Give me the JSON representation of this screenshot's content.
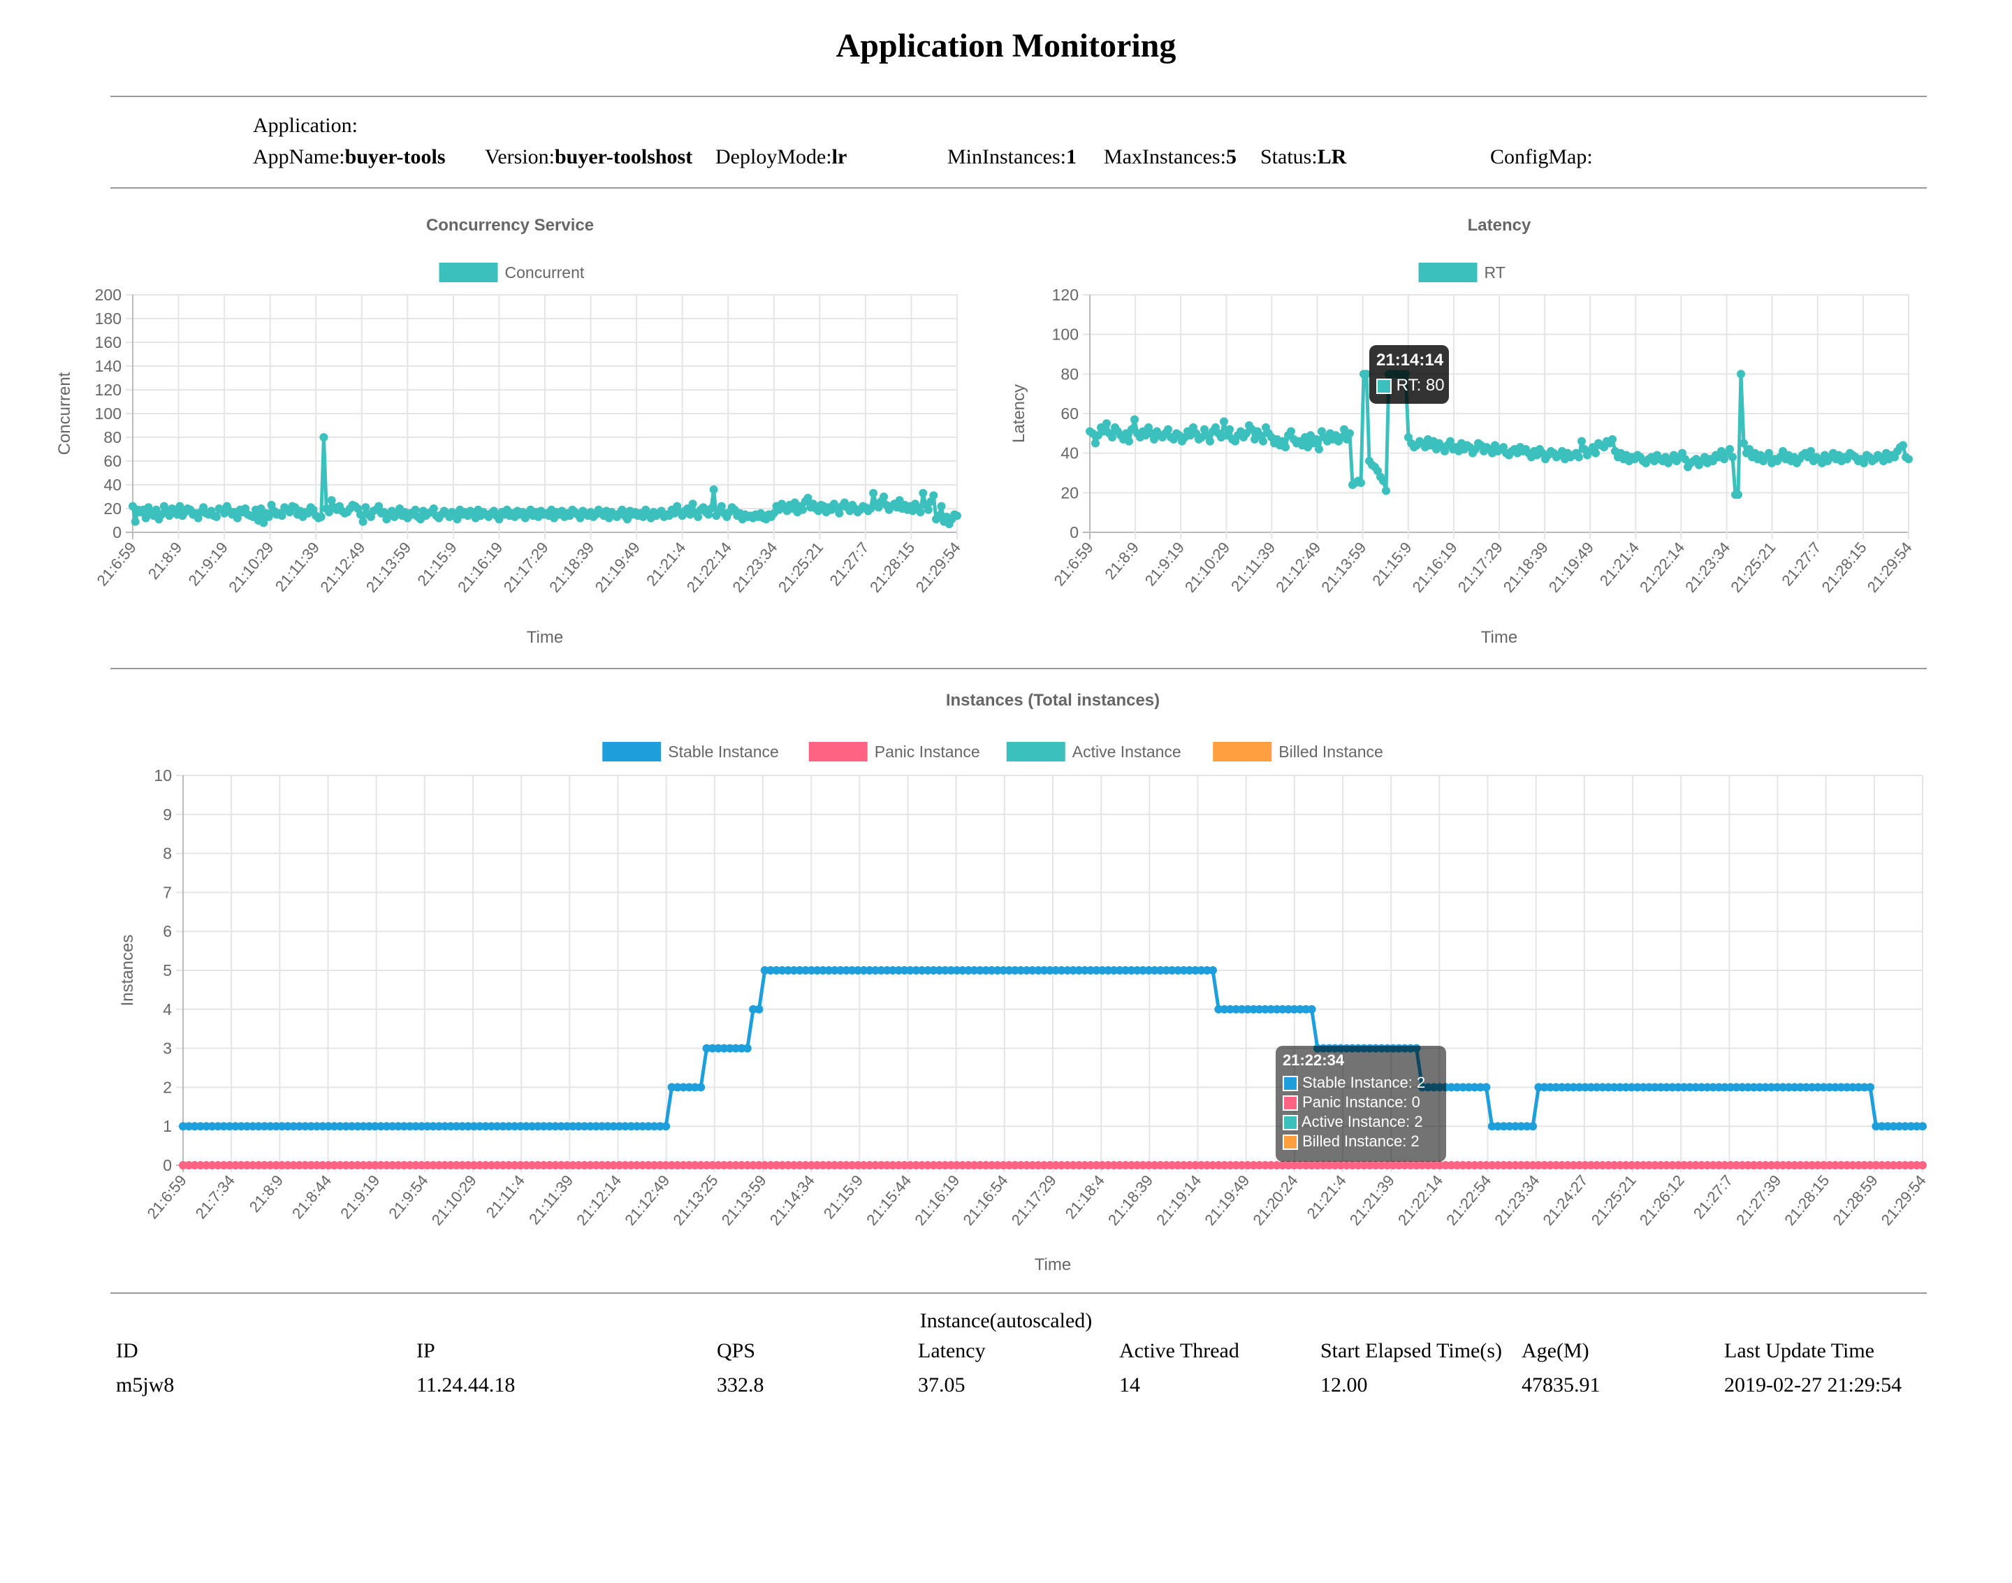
{
  "page": {
    "title": "Application Monitoring"
  },
  "app_info": {
    "application_label": "Application:",
    "appname_label": "AppName:",
    "appname_value": "buyer-tools",
    "version_label": "Version:",
    "version_value": "buyer-toolshost",
    "deploymode_label": "DeployMode:",
    "deploymode_value": "lr",
    "min_label": "MinInstances:",
    "min_value": "1",
    "max_label": "MaxInstances:",
    "max_value": "5",
    "status_label": "Status:",
    "status_value": "LR",
    "configmap_label": "ConfigMap:"
  },
  "colors": {
    "concurrent": "#3bc0be",
    "rt": "#3bc0be",
    "stable": "#1e9fdc",
    "panic": "#ff6384",
    "active": "#3bc0be",
    "billed": "#ff9f40",
    "grid": "#e5e5e5",
    "axis_text": "#666666"
  },
  "chart_data": [
    {
      "type": "line",
      "title": "Concurrency Service",
      "xlabel": "Time",
      "ylabel": "Concurrent",
      "ylim": [
        0,
        200
      ],
      "yticks": [
        0,
        20,
        40,
        60,
        80,
        100,
        120,
        140,
        160,
        180,
        200
      ],
      "grid": true,
      "legend_position": "top-center",
      "tick_labels": [
        "21:6:59",
        "21:8:9",
        "21:9:19",
        "21:10:29",
        "21:11:39",
        "21:12:49",
        "21:13:59",
        "21:15:9",
        "21:16:19",
        "21:17:29",
        "21:18:39",
        "21:19:49",
        "21:21:4",
        "21:22:14",
        "21:23:34",
        "21:25:21",
        "21:27:7",
        "21:28:15",
        "21:29:54"
      ],
      "series": [
        {
          "name": "Concurrent",
          "values": [
            22,
            9,
            19,
            17,
            19,
            12,
            21,
            16,
            14,
            19,
            11,
            15,
            22,
            18,
            14,
            20,
            19,
            15,
            22,
            14,
            17,
            20,
            19,
            15,
            16,
            12,
            17,
            21,
            16,
            15,
            18,
            14,
            13,
            20,
            19,
            16,
            22,
            18,
            15,
            17,
            12,
            19,
            17,
            20,
            15,
            14,
            13,
            19,
            10,
            20,
            8,
            16,
            13,
            23,
            18,
            15,
            16,
            14,
            21,
            19,
            17,
            22,
            21,
            15,
            18,
            13,
            17,
            16,
            21,
            19,
            14,
            12,
            13,
            80,
            20,
            17,
            27,
            21,
            19,
            22,
            18,
            16,
            17,
            20,
            23,
            22,
            20,
            15,
            9,
            21,
            15,
            13,
            18,
            19,
            22,
            16,
            17,
            11,
            14,
            18,
            13,
            15,
            20,
            14,
            17,
            12,
            16,
            15,
            19,
            13,
            11,
            18,
            14,
            16,
            17,
            20,
            14,
            12,
            15,
            18,
            16,
            13,
            17,
            14,
            11,
            19,
            15,
            17,
            14,
            18,
            16,
            12,
            19,
            14,
            17,
            15,
            13,
            16,
            18,
            14,
            11,
            17,
            15,
            19,
            14,
            16,
            13,
            18,
            15,
            17,
            12,
            16,
            19,
            14,
            17,
            13,
            18,
            15,
            16,
            14,
            19,
            12,
            17,
            15,
            18,
            13,
            16,
            14,
            19,
            17,
            15,
            12,
            18,
            16,
            14,
            17,
            13,
            15,
            19,
            16,
            14,
            18,
            12,
            17,
            15,
            13,
            16,
            19,
            14,
            11,
            18,
            15,
            17,
            14,
            16,
            13,
            19,
            15,
            12,
            17,
            14,
            16,
            18,
            13,
            15,
            14,
            19,
            16,
            22,
            17,
            14,
            18,
            20,
            15,
            24,
            16,
            13,
            19,
            21,
            17,
            15,
            20,
            36,
            14,
            18,
            22,
            16,
            13,
            17,
            21,
            19,
            14,
            16,
            11,
            15,
            13,
            14,
            12,
            15,
            13,
            16,
            12,
            11,
            15,
            13,
            16,
            22,
            19,
            24,
            21,
            18,
            23,
            20,
            25,
            17,
            22,
            19,
            26,
            29,
            21,
            24,
            20,
            18,
            23,
            22,
            17,
            21,
            19,
            24,
            20,
            16,
            22,
            25,
            21,
            18,
            23,
            20,
            17,
            19,
            22,
            21,
            18,
            20,
            33,
            24,
            21,
            26,
            30,
            23,
            19,
            22,
            24,
            21,
            27,
            20,
            23,
            19,
            22,
            18,
            24,
            21,
            17,
            33,
            23,
            19,
            26,
            31,
            11,
            14,
            22,
            9,
            13,
            7,
            11,
            15,
            14
          ]
        }
      ]
    },
    {
      "type": "line",
      "title": "Latency",
      "xlabel": "Time",
      "ylabel": "Latency",
      "ylim": [
        0,
        120
      ],
      "yticks": [
        0,
        20,
        40,
        60,
        80,
        100,
        120
      ],
      "grid": true,
      "legend_position": "top-center",
      "tick_labels": [
        "21:6:59",
        "21:8:9",
        "21:9:19",
        "21:10:29",
        "21:11:39",
        "21:12:49",
        "21:13:59",
        "21:15:9",
        "21:16:19",
        "21:17:29",
        "21:18:39",
        "21:19:49",
        "21:21:4",
        "21:22:14",
        "21:23:34",
        "21:25:21",
        "21:27:7",
        "21:28:15",
        "21:29:54"
      ],
      "tooltip": {
        "title": "21:14:14",
        "label": "RT: 80"
      },
      "series": [
        {
          "name": "RT",
          "values": [
            51,
            50,
            45,
            49,
            53,
            51,
            55,
            50,
            48,
            53,
            51,
            49,
            47,
            50,
            46,
            52,
            57,
            50,
            48,
            51,
            49,
            53,
            50,
            47,
            51,
            49,
            48,
            50,
            52,
            48,
            47,
            50,
            49,
            46,
            48,
            51,
            49,
            53,
            50,
            47,
            48,
            52,
            49,
            46,
            51,
            53,
            50,
            48,
            56,
            49,
            52,
            47,
            46,
            49,
            51,
            48,
            50,
            54,
            52,
            47,
            51,
            49,
            46,
            53,
            50,
            48,
            45,
            47,
            44,
            46,
            43,
            49,
            51,
            47,
            45,
            46,
            44,
            48,
            43,
            49,
            45,
            47,
            42,
            51,
            48,
            46,
            50,
            47,
            49,
            46,
            48,
            52,
            47,
            50,
            24,
            25,
            26,
            25,
            80,
            80,
            36,
            34,
            33,
            31,
            28,
            26,
            21,
            80,
            80,
            80,
            80,
            79,
            80,
            80,
            48,
            45,
            43,
            44,
            46,
            45,
            43,
            47,
            44,
            46,
            42,
            45,
            43,
            41,
            44,
            46,
            42,
            43,
            41,
            45,
            42,
            44,
            43,
            40,
            42,
            45,
            44,
            41,
            43,
            42,
            40,
            44,
            41,
            42,
            43,
            40,
            39,
            41,
            42,
            40,
            43,
            41,
            42,
            40,
            38,
            41,
            39,
            42,
            40,
            37,
            39,
            41,
            40,
            38,
            39,
            41,
            37,
            40,
            38,
            39,
            40,
            38,
            46,
            42,
            39,
            41,
            43,
            40,
            45,
            44,
            43,
            46,
            45,
            47,
            41,
            38,
            40,
            37,
            39,
            36,
            38,
            37,
            39,
            38,
            36,
            35,
            37,
            38,
            36,
            39,
            37,
            36,
            38,
            35,
            37,
            39,
            36,
            38,
            40,
            37,
            33,
            35,
            36,
            37,
            34,
            36,
            38,
            35,
            37,
            36,
            39,
            38,
            41,
            37,
            40,
            42,
            38,
            19,
            19,
            80,
            45,
            40,
            42,
            38,
            40,
            37,
            39,
            36,
            38,
            40,
            35,
            37,
            36,
            38,
            41,
            37,
            39,
            36,
            38,
            35,
            37,
            39,
            40,
            38,
            41,
            36,
            38,
            37,
            35,
            39,
            36,
            38,
            40,
            37,
            39,
            36,
            38,
            37,
            40,
            39,
            38,
            36,
            37,
            35,
            39,
            38,
            36,
            37,
            39,
            38,
            36,
            40,
            37,
            39,
            38,
            41,
            43,
            44,
            38,
            37
          ]
        }
      ]
    },
    {
      "type": "line",
      "title": "Instances (Total instances)",
      "xlabel": "Time",
      "ylabel": "Instances",
      "ylim": [
        0,
        10
      ],
      "yticks": [
        0,
        1,
        2,
        3,
        4,
        5,
        6,
        7,
        8,
        9,
        10
      ],
      "grid": true,
      "legend_position": "top-center",
      "tick_labels": [
        "21:6:59",
        "21:7:34",
        "21:8:9",
        "21:8:44",
        "21:9:19",
        "21:9:54",
        "21:10:29",
        "21:11:4",
        "21:11:39",
        "21:12:14",
        "21:12:49",
        "21:13:25",
        "21:13:59",
        "21:14:34",
        "21:15:9",
        "21:15:44",
        "21:16:19",
        "21:16:54",
        "21:17:29",
        "21:18:4",
        "21:18:39",
        "21:19:14",
        "21:19:49",
        "21:20:24",
        "21:21:4",
        "21:21:39",
        "21:22:14",
        "21:22:54",
        "21:23:34",
        "21:24:27",
        "21:25:21",
        "21:26:12",
        "21:27:7",
        "21:27:39",
        "21:28:15",
        "21:28:59",
        "21:29:54"
      ],
      "tooltip": {
        "title": "21:22:34",
        "lines": [
          "Stable Instance: 2",
          "Panic Instance: 0",
          "Active Instance: 2",
          "Billed Instance: 2"
        ]
      },
      "step_points": [
        {
          "from": 0.0,
          "to": 0.278,
          "value": 1
        },
        {
          "from": 0.278,
          "to": 0.3,
          "value": 2
        },
        {
          "from": 0.3,
          "to": 0.325,
          "value": 3
        },
        {
          "from": 0.325,
          "to": 0.332,
          "value": 4
        },
        {
          "from": 0.332,
          "to": 0.592,
          "value": 5
        },
        {
          "from": 0.592,
          "to": 0.65,
          "value": 4
        },
        {
          "from": 0.65,
          "to": 0.71,
          "value": 3
        },
        {
          "from": 0.71,
          "to": 0.752,
          "value": 2
        },
        {
          "from": 0.752,
          "to": 0.778,
          "value": 1
        },
        {
          "from": 0.778,
          "to": 0.972,
          "value": 2
        },
        {
          "from": 0.972,
          "to": 1.0,
          "value": 1
        }
      ],
      "series": [
        {
          "name": "Stable Instance"
        },
        {
          "name": "Panic Instance",
          "constant": 0
        },
        {
          "name": "Active Instance"
        },
        {
          "name": "Billed Instance"
        }
      ]
    }
  ],
  "table": {
    "title": "Instance(autoscaled)",
    "headers": [
      "ID",
      "IP",
      "QPS",
      "Latency",
      "Active Thread",
      "Start Elapsed Time(s)",
      "Age(M)",
      "Last Update Time"
    ],
    "rows": [
      [
        "m5jw8",
        "11.24.44.18",
        "332.8",
        "37.05",
        "14",
        "12.00",
        "47835.91",
        "2019-02-27 21:29:54"
      ]
    ]
  }
}
